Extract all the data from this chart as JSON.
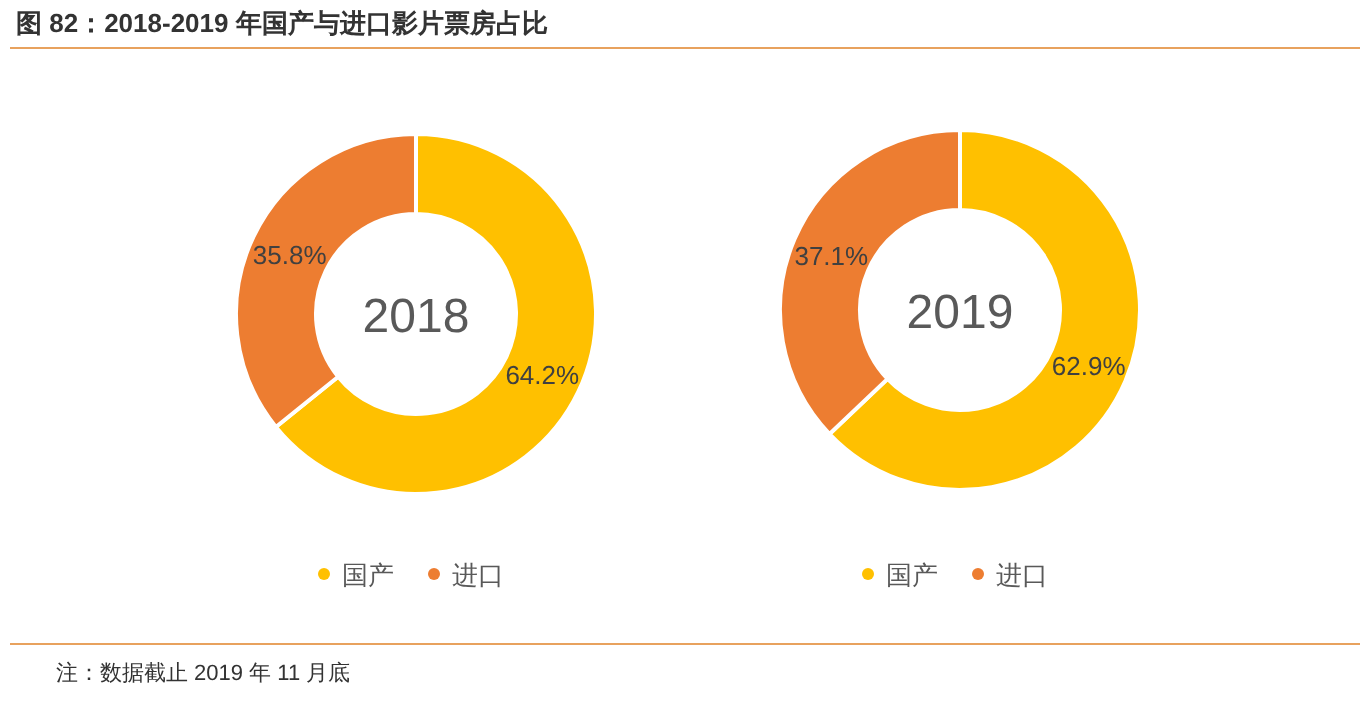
{
  "chart_data": [
    {
      "type": "donut",
      "title": "图 82：2018-2019 年国产与进口影片票房占比",
      "subtitle": "2018",
      "categories": [
        "国产",
        "进口"
      ],
      "values": [
        64.2,
        35.8
      ],
      "colors": [
        "#ffc000",
        "#ed7d31"
      ],
      "value_labels": [
        "64.2%",
        "35.8%"
      ],
      "legend": "bottom"
    },
    {
      "type": "donut",
      "subtitle": "2019",
      "categories": [
        "国产",
        "进口"
      ],
      "values": [
        62.9,
        37.1
      ],
      "colors": [
        "#ffc000",
        "#ed7d31"
      ],
      "value_labels": [
        "62.9%",
        "37.1%"
      ],
      "legend": "bottom",
      "annotations": [
        "注：数据截止 2019 年 11 月底"
      ]
    }
  ]
}
